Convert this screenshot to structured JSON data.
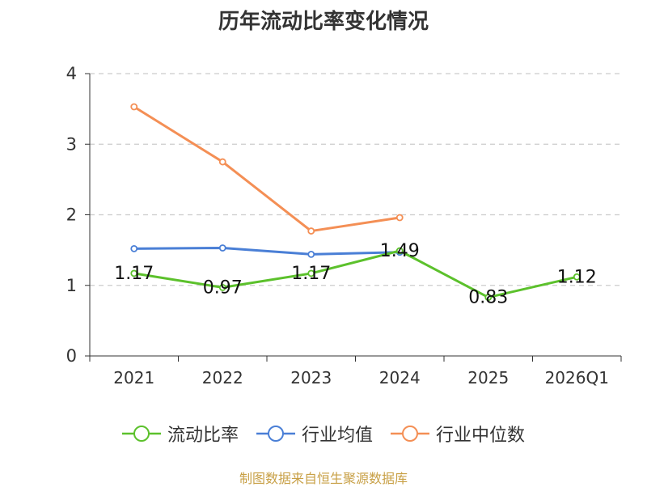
{
  "chart_data": {
    "type": "line",
    "title": "历年流动比率变化情况",
    "categories": [
      "2021",
      "2022",
      "2023",
      "2024",
      "2025",
      "2026Q1"
    ],
    "ylim": [
      0,
      4
    ],
    "yticks": [
      0,
      1,
      2,
      3,
      4
    ],
    "grid": true,
    "legend_position": "bottom",
    "series": [
      {
        "name": "流动比率",
        "color": "#5cc12c",
        "values": [
          1.17,
          0.97,
          1.17,
          1.49,
          0.83,
          1.12
        ],
        "labels": true
      },
      {
        "name": "行业均值",
        "color": "#4a7fd6",
        "values": [
          1.52,
          1.53,
          1.44,
          1.47,
          null,
          null
        ],
        "labels": false
      },
      {
        "name": "行业中位数",
        "color": "#f48f55",
        "values": [
          3.53,
          2.75,
          1.77,
          1.96,
          null,
          null
        ],
        "labels": false
      }
    ]
  },
  "source_note": "制图数据来自恒生聚源数据库"
}
